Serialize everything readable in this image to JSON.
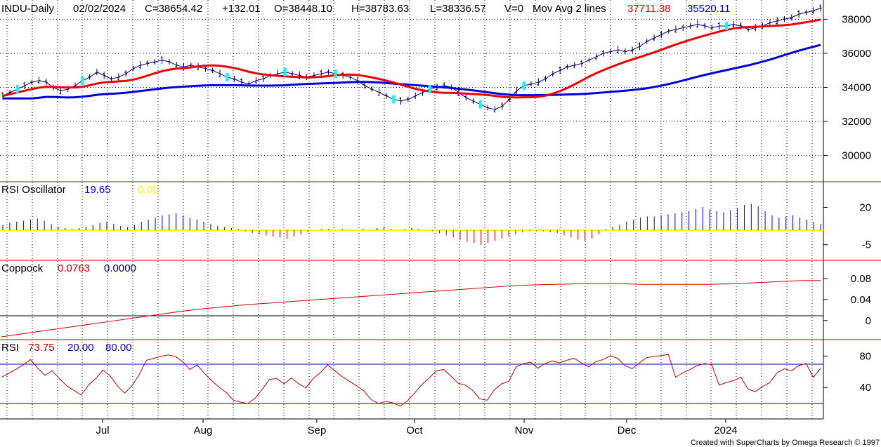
{
  "header": {
    "symbol": "INDU-Daily",
    "date": "02/02/2024",
    "close": "C=38654.42",
    "change": "+132.01",
    "open": "O=38448.10",
    "high": "H=38783.63",
    "low": "L=38336.57",
    "volume": "V=0",
    "ma_label": "Mov Avg 2 lines",
    "ma1_value": "37711.38",
    "ma2_value": "35520.11"
  },
  "panels": {
    "rsi_osc": {
      "label": "RSI Oscillator",
      "value1": "19.65",
      "value2": "0.00"
    },
    "coppock": {
      "label": "Coppock",
      "value1": "0.0763",
      "value2": "0.0000"
    },
    "rsi": {
      "label": "RSI",
      "value1": "73.75",
      "value2": "20.00",
      "value3": "80.00"
    }
  },
  "credit": "Created with SuperCharts by Omega Research © 1997",
  "colors": {
    "grid": "#000000",
    "separator": "#cc0000",
    "bars": "#000000",
    "ma_fast": "#ee0000",
    "ma_slow": "#0000dd",
    "close_line": "#0000aa",
    "marker": "#00ffff",
    "osc_pos": "#0000ff",
    "osc_neg": "#dd0000",
    "osc_zero": "#ffff00",
    "coppock": "#cc0000",
    "rsi": "#cc0000",
    "rsi_band": "#0000aa"
  },
  "chart_data": [
    {
      "type": "ohlc-bars",
      "title": "INDU-Daily",
      "y_ticks": [
        "38000",
        "36000",
        "34000",
        "32000",
        "30000"
      ],
      "ylim": [
        28500,
        38800
      ],
      "x_labels": [
        "Jul",
        "Aug",
        "Sep",
        "Oct",
        "Nov",
        "Dec",
        "2024"
      ],
      "close_series_approx": [
        33500,
        33700,
        33900,
        34100,
        34300,
        34400,
        34300,
        34000,
        33800,
        33900,
        34100,
        34400,
        34600,
        34900,
        34700,
        34500,
        34600,
        34800,
        35100,
        35300,
        35400,
        35500,
        35600,
        35500,
        35300,
        35200,
        35300,
        35200,
        35100,
        35000,
        34800,
        34600,
        34500,
        34300,
        34200,
        34400,
        34500,
        34700,
        34800,
        34900,
        34800,
        34700,
        34600,
        34700,
        34800,
        34900,
        34800,
        34700,
        34600,
        34400,
        34100,
        33900,
        33700,
        33500,
        33300,
        33200,
        33300,
        33500,
        33700,
        33900,
        34000,
        34100,
        34000,
        33700,
        33400,
        33200,
        33000,
        32800,
        32700,
        32900,
        33300,
        33800,
        34100,
        34200,
        34300,
        34500,
        34800,
        35000,
        35200,
        35300,
        35400,
        35600,
        35800,
        36000,
        36100,
        36200,
        36100,
        36200,
        36400,
        36700,
        36900,
        37100,
        37300,
        37400,
        37500,
        37600,
        37700,
        37600,
        37500,
        37600,
        37600,
        37700,
        37600,
        37400,
        37500,
        37600,
        37800,
        37900,
        38000,
        38100,
        38300,
        38400,
        38500,
        38650
      ],
      "series": [
        {
          "name": "Mov Avg 2 lines",
          "last_value": 37711.38
        },
        {
          "last_value": 35520.11
        }
      ]
    },
    {
      "type": "bar",
      "title": "RSI Oscillator",
      "y_ticks": [
        "20",
        "-5"
      ],
      "ylim": [
        -15,
        32
      ],
      "values": [
        5,
        7,
        8,
        9,
        10,
        11,
        9,
        6,
        3,
        2,
        1,
        2,
        3,
        5,
        7,
        8,
        6,
        4,
        3,
        5,
        8,
        10,
        12,
        14,
        15,
        16,
        14,
        12,
        10,
        8,
        6,
        4,
        3,
        2,
        1,
        -1,
        -3,
        -4,
        -5,
        -6,
        -7,
        -8,
        -6,
        -4,
        -2,
        0,
        1,
        1,
        0,
        1,
        0,
        0,
        1,
        0,
        2,
        3,
        1,
        0,
        1,
        2,
        1,
        0,
        -1,
        -3,
        -5,
        -7,
        -9,
        -11,
        -12,
        -14,
        -12,
        -10,
        -8,
        -6,
        -4,
        -2,
        -1,
        -1,
        -1,
        -2,
        -3,
        -5,
        -7,
        -9,
        -10,
        -8,
        -4,
        1,
        3,
        5,
        8,
        10,
        12,
        13,
        13,
        14,
        15,
        16,
        17,
        18,
        20,
        22,
        20,
        18,
        17,
        19,
        21,
        24,
        25,
        23,
        18,
        14,
        12,
        13,
        14,
        12,
        10,
        8,
        6
      ],
      "series": [
        {
          "last_value": 19.65
        },
        {
          "last_value": 0.0
        }
      ]
    },
    {
      "type": "line",
      "title": "Coppock",
      "y_ticks": [
        "0.08",
        "0.04",
        "0"
      ],
      "ylim": [
        -0.035,
        0.1
      ],
      "values": [
        -0.031,
        -0.025,
        -0.019,
        -0.013,
        -0.007,
        -0.001,
        0.005,
        0.011,
        0.017,
        0.022,
        0.026,
        0.03,
        0.033,
        0.036,
        0.039,
        0.042,
        0.045,
        0.048,
        0.051,
        0.054,
        0.057,
        0.06,
        0.063,
        0.066,
        0.068,
        0.069,
        0.07,
        0.07,
        0.07,
        0.069,
        0.069,
        0.069,
        0.069,
        0.07,
        0.072,
        0.074,
        0.076,
        0.0763
      ],
      "series": [
        {
          "last_value": 0.0763
        },
        {
          "last_value": 0.0
        }
      ]
    },
    {
      "type": "line",
      "title": "RSI",
      "y_ticks": [
        "80",
        "40"
      ],
      "ylim": [
        0,
        100
      ],
      "bands": [
        20,
        80
      ],
      "values": [
        60,
        66,
        72,
        79,
        87,
        74,
        63,
        70,
        58,
        47,
        40,
        33,
        48,
        58,
        71,
        62,
        47,
        36,
        47,
        64,
        86,
        89,
        92,
        94,
        92,
        84,
        72,
        79,
        66,
        55,
        45,
        37,
        25,
        22,
        20,
        28,
        42,
        57,
        58,
        50,
        59,
        50,
        44,
        58,
        67,
        79,
        70,
        61,
        54,
        47,
        39,
        26,
        20,
        23,
        21,
        16,
        24,
        36,
        49,
        59,
        70,
        72,
        62,
        51,
        48,
        40,
        27,
        25,
        41,
        50,
        54,
        76,
        81,
        83,
        74,
        81,
        85,
        82,
        86,
        89,
        82,
        76,
        84,
        87,
        93,
        89,
        78,
        73,
        82,
        90,
        92,
        93,
        95,
        60,
        67,
        72,
        78,
        81,
        79,
        48,
        52,
        55,
        60,
        42,
        38,
        46,
        52,
        67,
        73,
        70,
        78,
        81,
        60,
        73.75
      ],
      "series": [
        {
          "last_value": 73.75
        },
        {
          "last_value": 20.0
        },
        {
          "last_value": 80.0
        }
      ]
    }
  ]
}
